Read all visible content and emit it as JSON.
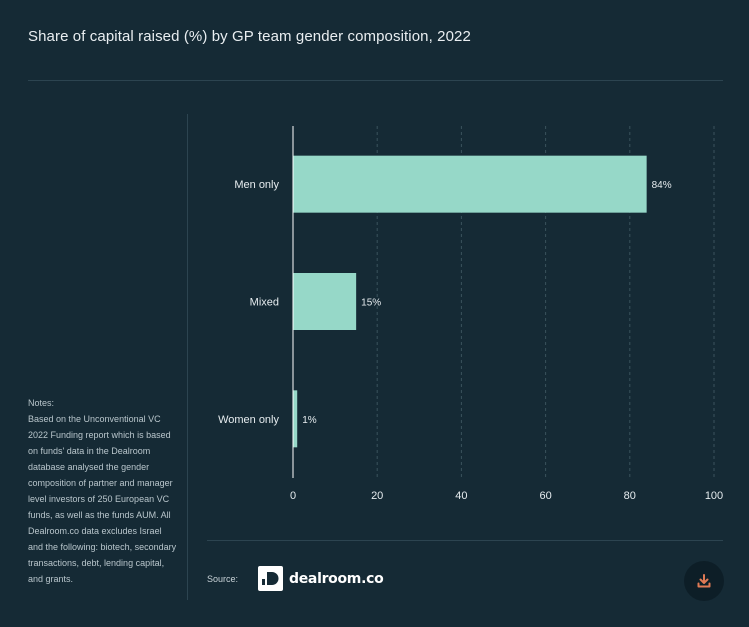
{
  "title": "Share of capital raised (%) by GP team gender composition, 2022",
  "notes": {
    "heading": "Notes:",
    "body": "Based on the Unconventional VC 2022 Funding report which is based on funds' data in the Dealroom database analysed the gender composition of partner and manager level investors of 250 European VC funds, as well as the funds AUM. All Dealroom.co data excludes Israel and the following: biotech, secondary transactions, debt, lending capital, and grants."
  },
  "footer": {
    "source_label": "Source:",
    "logo_text": "dealroom.co",
    "download_icon": "download-icon"
  },
  "colors": {
    "background": "#152a35",
    "bar": "#96d8c8",
    "grid": "#3a525d",
    "text": "#e6ecef",
    "download_icon": "#e07a55"
  },
  "chart_data": {
    "type": "bar",
    "orientation": "horizontal",
    "categories": [
      "Men only",
      "Mixed",
      "Women only"
    ],
    "values": [
      84,
      15,
      1
    ],
    "data_labels": [
      "84%",
      "15%",
      "1%"
    ],
    "xlim": [
      0,
      100
    ],
    "xticks": [
      0,
      20,
      40,
      60,
      80,
      100
    ],
    "grid": "vertical dashed",
    "legend": "none"
  }
}
